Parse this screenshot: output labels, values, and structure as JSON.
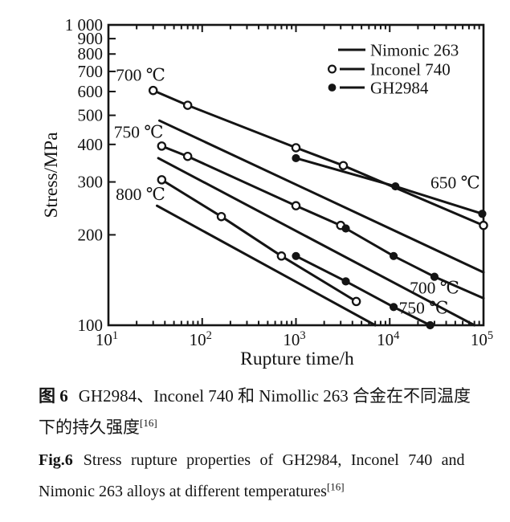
{
  "chart_data": {
    "type": "line",
    "x_axis": {
      "label": "Rupture time/h",
      "scale": "log",
      "range": [
        10,
        100000
      ],
      "ticks": [
        {
          "value": 10,
          "base": "10",
          "exp": "1"
        },
        {
          "value": 100,
          "base": "10",
          "exp": "2"
        },
        {
          "value": 1000,
          "base": "10",
          "exp": "3"
        },
        {
          "value": 10000,
          "base": "10",
          "exp": "4"
        },
        {
          "value": 100000,
          "base": "10",
          "exp": "5"
        }
      ]
    },
    "y_axis": {
      "label": "Stress/MPa",
      "scale": "log",
      "range": [
        100,
        1000
      ],
      "ticks": [
        {
          "value": 1000,
          "label": "1 000"
        },
        {
          "value": 900,
          "label": "900"
        },
        {
          "value": 800,
          "label": "800"
        },
        {
          "value": 700,
          "label": "700"
        },
        {
          "value": 600,
          "label": "600"
        },
        {
          "value": 500,
          "label": "500"
        },
        {
          "value": 400,
          "label": "400"
        },
        {
          "value": 300,
          "label": "300"
        },
        {
          "value": 200,
          "label": "200"
        },
        {
          "value": 100,
          "label": "100"
        }
      ]
    },
    "legend": [
      {
        "marker": "none",
        "label": "Nimonic 263"
      },
      {
        "marker": "open",
        "label": "Inconel 740"
      },
      {
        "marker": "filled",
        "label": "GH2984"
      }
    ],
    "series": [
      {
        "alloy": "Nimonic 263",
        "temperature": "700 ℃",
        "marker": "none",
        "points": [
          [
            35,
            480
          ],
          [
            100000,
            150
          ]
        ],
        "markers": []
      },
      {
        "alloy": "Nimonic 263",
        "temperature": "750 ℃",
        "marker": "none",
        "points": [
          [
            34,
            360
          ],
          [
            80000,
            100
          ]
        ],
        "markers": []
      },
      {
        "alloy": "Nimonic 263",
        "temperature": "800 ℃",
        "marker": "none",
        "points": [
          [
            33,
            250
          ],
          [
            7000,
            100
          ]
        ],
        "markers": []
      },
      {
        "alloy": "Inconel 740",
        "temperature": "650 ℃",
        "marker": "open",
        "points": [
          [
            30,
            605
          ],
          [
            70,
            540
          ],
          [
            1000,
            390
          ],
          [
            3200,
            340
          ],
          [
            100000,
            215
          ]
        ]
      },
      {
        "alloy": "Inconel 740",
        "temperature": "750 ℃",
        "marker": "open",
        "points": [
          [
            37,
            395
          ],
          [
            70,
            365
          ],
          [
            1000,
            250
          ],
          [
            3000,
            215
          ]
        ]
      },
      {
        "alloy": "Inconel 740",
        "temperature": "800 ℃",
        "marker": "open",
        "points": [
          [
            37,
            305
          ],
          [
            160,
            230
          ],
          [
            700,
            170
          ],
          [
            4400,
            120
          ]
        ]
      },
      {
        "alloy": "GH2984",
        "temperature": "650 ℃",
        "marker": "filled",
        "points": [
          [
            1000,
            360
          ],
          [
            11500,
            290
          ],
          [
            97000,
            235
          ]
        ]
      },
      {
        "alloy": "GH2984",
        "temperature": "700 ℃",
        "marker": "filled",
        "points": [
          [
            3400,
            210
          ],
          [
            11000,
            170
          ],
          [
            30000,
            145
          ],
          [
            100000,
            123
          ]
        ],
        "markers": [
          [
            3400,
            210
          ],
          [
            11000,
            170
          ],
          [
            30000,
            145
          ]
        ]
      },
      {
        "alloy": "GH2984",
        "temperature": "750 ℃",
        "marker": "filled",
        "points": [
          [
            1000,
            170
          ],
          [
            3400,
            140
          ],
          [
            11000,
            115
          ],
          [
            27000,
            100
          ]
        ]
      }
    ],
    "annotations": [
      {
        "text": "700 ℃",
        "t": 22,
        "s": 680
      },
      {
        "text": "750 ℃",
        "t": 21,
        "s": 440
      },
      {
        "text": "800 ℃",
        "t": 22,
        "s": 273
      },
      {
        "text": "650 ℃",
        "t": 50000,
        "s": 298
      },
      {
        "text": "700 ℃",
        "t": 30000,
        "s": 133
      },
      {
        "text": "750 ℃",
        "t": 23000,
        "s": 114
      }
    ]
  },
  "captions": {
    "zh": {
      "label": "图 6",
      "lines": [
        "GH2984、Inconel 740 和 Nimollic 263 合金在不同温度",
        "下的持久强度"
      ],
      "sup": "[16]"
    },
    "en": {
      "label": "Fig.6",
      "lines": [
        "Stress rupture properties of GH2984, Inconel 740 and",
        "Nimonic 263 alloys at different temperatures"
      ],
      "sup": "[16]"
    }
  }
}
